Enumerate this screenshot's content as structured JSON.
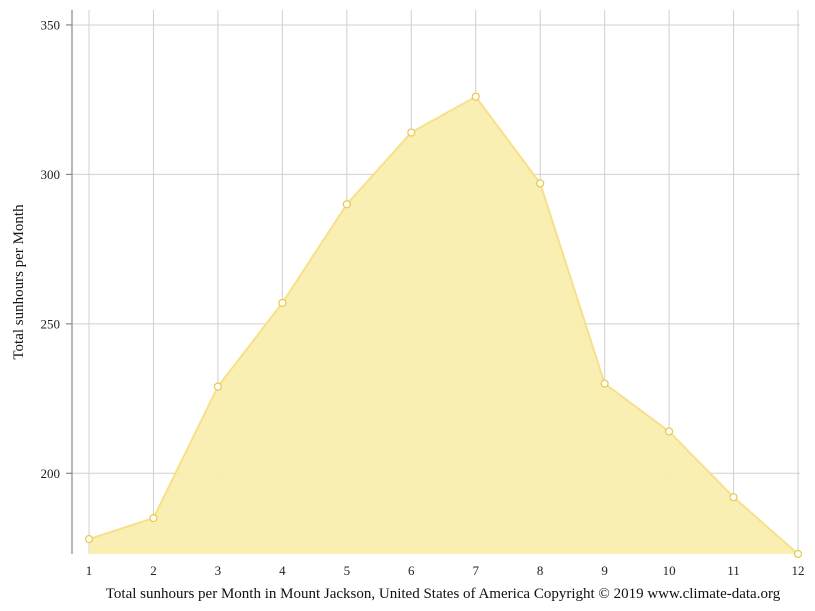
{
  "chart_data": {
    "type": "area",
    "x": [
      1,
      2,
      3,
      4,
      5,
      6,
      7,
      8,
      9,
      10,
      11,
      12
    ],
    "series": [
      {
        "values": [
          178,
          185,
          229,
          257,
          290,
          314,
          326,
          297,
          230,
          214,
          192,
          173
        ]
      }
    ],
    "xlabel": "Total sunhours per Month in Mount Jackson, United States of America Copyright © 2019 www.climate-data.org",
    "ylabel": "Total sunhours per Month",
    "ylim": [
      173,
      355
    ],
    "yticks": [
      200,
      250,
      300,
      350
    ],
    "grid": true,
    "colors": {
      "fill": "#faeeae",
      "line": "#f8e08a",
      "marker_fill": "#ffffff",
      "marker_stroke": "#e8c94a"
    }
  }
}
